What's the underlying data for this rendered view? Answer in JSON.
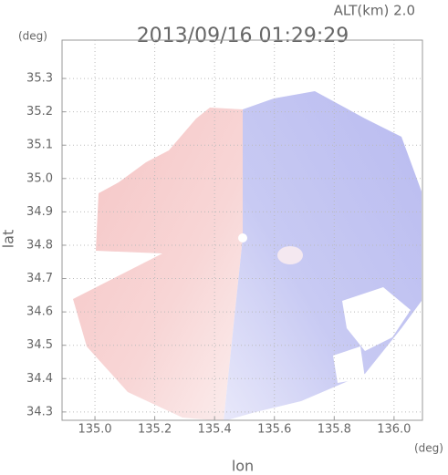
{
  "chart_data": {
    "type": "radar-map",
    "title": "2013/09/16 01:29:29",
    "subtitle": "ALT(km) 2.0",
    "x_label": "lon",
    "y_label": "lat",
    "x_unit": "(deg)",
    "y_unit": "(deg)",
    "xlim": [
      134.89,
      136.095
    ],
    "ylim": [
      34.275,
      35.415
    ],
    "xticks": [
      {
        "value": 135,
        "label": "135.0"
      },
      135.2,
      135.4,
      135.6,
      135.8,
      {
        "value": 136,
        "label": "136.0"
      }
    ],
    "yticks": [
      34.3,
      34.4,
      34.5,
      34.6,
      34.7,
      34.8,
      34.9,
      {
        "value": 35,
        "label": "35.0"
      },
      35.1,
      35.2,
      35.3
    ],
    "grid": true
  }
}
